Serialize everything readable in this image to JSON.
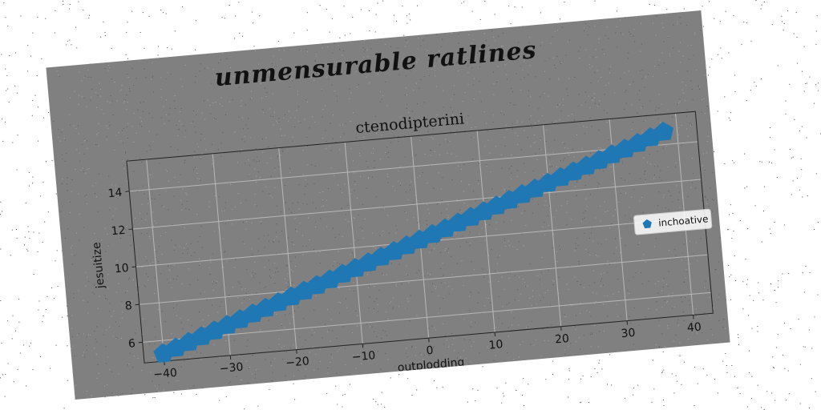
{
  "figure": {
    "suptitle": "unmensurable ratlines",
    "background": "#808080"
  },
  "chart_data": {
    "type": "scatter",
    "title": "ctenodipterini",
    "xlabel": "outplodding",
    "ylabel": "jesuitize",
    "xlim": [
      -43,
      43
    ],
    "ylim": [
      4.9,
      15.6
    ],
    "xticks": [
      -40,
      -30,
      -20,
      -10,
      0,
      10,
      20,
      30,
      40
    ],
    "xtick_labels": [
      "−40",
      "−30",
      "−20",
      "−10",
      "0",
      "10",
      "20",
      "30",
      "40"
    ],
    "yticks": [
      6,
      8,
      10,
      12,
      14
    ],
    "ytick_labels": [
      "6",
      "8",
      "10",
      "12",
      "14"
    ],
    "grid": true,
    "legend": {
      "position": "right",
      "entries": [
        "inchoative"
      ]
    },
    "marker": "pentagon",
    "series": [
      {
        "name": "inchoative",
        "color": "#1f77b4",
        "x": [
          -40,
          -38,
          -36,
          -34,
          -32,
          -30,
          -28,
          -26,
          -24,
          -22,
          -20,
          -18,
          -16,
          -14,
          -12,
          -10,
          -8,
          -6,
          -4,
          -2,
          0,
          2,
          4,
          6,
          8,
          10,
          12,
          14,
          16,
          18,
          20,
          22,
          24,
          26,
          28,
          30,
          32,
          34,
          36,
          38
        ],
        "y": [
          5.3,
          5.54,
          5.78,
          6.02,
          6.26,
          6.5,
          6.74,
          6.98,
          7.22,
          7.46,
          7.7,
          7.94,
          8.18,
          8.42,
          8.66,
          8.9,
          9.14,
          9.38,
          9.62,
          9.86,
          10.1,
          10.34,
          10.58,
          10.82,
          11.06,
          11.3,
          11.54,
          11.78,
          12.02,
          12.26,
          12.5,
          12.74,
          12.98,
          13.22,
          13.46,
          13.7,
          13.94,
          14.18,
          14.42,
          14.66
        ]
      }
    ]
  }
}
